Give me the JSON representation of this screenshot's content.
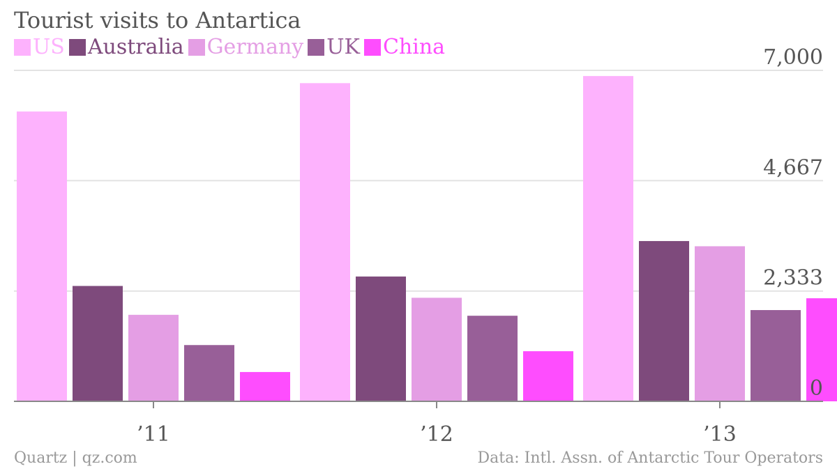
{
  "chart_data": {
    "type": "bar",
    "title": "Tourist visits to Antartica",
    "categories": [
      "’11",
      "’12",
      "’13"
    ],
    "series": [
      {
        "name": "US",
        "color": "#fdb2fd",
        "values": [
          6130,
          6730,
          6880
        ]
      },
      {
        "name": "Australia",
        "color": "#7e4a7c",
        "values": [
          2440,
          2640,
          3390
        ]
      },
      {
        "name": "Germany",
        "color": "#e49ee4",
        "values": [
          1830,
          2190,
          3280
        ]
      },
      {
        "name": "UK",
        "color": "#985f98",
        "values": [
          1190,
          1810,
          1930
        ]
      },
      {
        "name": "China",
        "color": "#fe4dfe",
        "values": [
          620,
          1060,
          2180
        ]
      }
    ],
    "ylim": [
      0,
      7000
    ],
    "yticks": [
      {
        "value": 0,
        "label": "0"
      },
      {
        "value": 2333,
        "label": "2,333"
      },
      {
        "value": 4667,
        "label": "4,667"
      },
      {
        "value": 7000,
        "label": "7,000"
      }
    ],
    "grid": true,
    "legend": "top-left",
    "axis_side": "right"
  },
  "footer": {
    "source_left": "Quartz | qz.com",
    "source_right": "Data: Intl. Assn. of Antarctic Tour Operators"
  }
}
